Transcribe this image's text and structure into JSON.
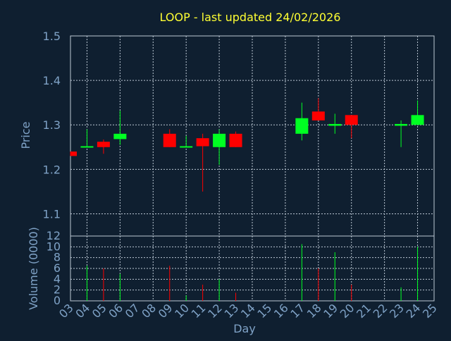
{
  "title": "LOOP - last updated 24/02/2026",
  "colors": {
    "background": "#0f1f30",
    "title": "#ffff33",
    "axis_text": "#7fa2c6",
    "grid": "#bcc8d4",
    "up": "#00ff22",
    "down": "#ff0000"
  },
  "chart_data": [
    {
      "type": "candlestick",
      "ylabel": "Price",
      "ylim": [
        1.05,
        1.5
      ],
      "yticks": [
        "1.1",
        "1.2",
        "1.3",
        "1.4",
        "1.5"
      ],
      "grid": true,
      "candles": [
        {
          "day": "03",
          "open": 1.24,
          "high": 1.24,
          "low": 1.23,
          "close": 1.23
        },
        {
          "day": "04",
          "open": 1.25,
          "high": 1.29,
          "low": 1.25,
          "close": 1.252
        },
        {
          "day": "05",
          "open": 1.262,
          "high": 1.267,
          "low": 1.235,
          "close": 1.25
        },
        {
          "day": "06",
          "open": 1.268,
          "high": 1.332,
          "low": 1.255,
          "close": 1.28
        },
        {
          "day": "09",
          "open": 1.28,
          "high": 1.29,
          "low": 1.25,
          "close": 1.25
        },
        {
          "day": "10",
          "open": 1.25,
          "high": 1.275,
          "low": 1.25,
          "close": 1.252
        },
        {
          "day": "11",
          "open": 1.27,
          "high": 1.28,
          "low": 1.15,
          "close": 1.252
        },
        {
          "day": "12",
          "open": 1.25,
          "high": 1.29,
          "low": 1.21,
          "close": 1.28
        },
        {
          "day": "13",
          "open": 1.28,
          "high": 1.285,
          "low": 1.25,
          "close": 1.25
        },
        {
          "day": "17",
          "open": 1.28,
          "high": 1.35,
          "low": 1.265,
          "close": 1.315
        },
        {
          "day": "18",
          "open": 1.33,
          "high": 1.36,
          "low": 1.31,
          "close": 1.31
        },
        {
          "day": "19",
          "open": 1.298,
          "high": 1.325,
          "low": 1.28,
          "close": 1.302
        },
        {
          "day": "20",
          "open": 1.322,
          "high": 1.322,
          "low": 1.27,
          "close": 1.3
        },
        {
          "day": "23",
          "open": 1.298,
          "high": 1.31,
          "low": 1.25,
          "close": 1.302
        },
        {
          "day": "24",
          "open": 1.3,
          "high": 1.355,
          "low": 1.3,
          "close": 1.322
        }
      ]
    },
    {
      "type": "bar",
      "xlabel": "Day",
      "ylabel": "Volume (0000)",
      "ylim": [
        0,
        12
      ],
      "yticks": [
        "0",
        "2",
        "4",
        "6",
        "8",
        "10",
        "12"
      ],
      "grid": true,
      "x_categories": [
        "03",
        "04",
        "05",
        "06",
        "07",
        "08",
        "09",
        "10",
        "11",
        "12",
        "13",
        "14",
        "15",
        "16",
        "17",
        "18",
        "19",
        "20",
        "21",
        "22",
        "23",
        "24",
        "25"
      ],
      "volumes": [
        {
          "day": "04",
          "value": 6.5,
          "color": "up"
        },
        {
          "day": "05",
          "value": 6.0,
          "color": "down"
        },
        {
          "day": "06",
          "value": 5.0,
          "color": "up"
        },
        {
          "day": "09",
          "value": 6.5,
          "color": "down"
        },
        {
          "day": "10",
          "value": 1.0,
          "color": "up"
        },
        {
          "day": "11",
          "value": 3.0,
          "color": "down"
        },
        {
          "day": "12",
          "value": 4.0,
          "color": "up"
        },
        {
          "day": "13",
          "value": 1.5,
          "color": "down"
        },
        {
          "day": "17",
          "value": 10.5,
          "color": "up"
        },
        {
          "day": "18",
          "value": 6.0,
          "color": "down"
        },
        {
          "day": "19",
          "value": 9.0,
          "color": "up"
        },
        {
          "day": "20",
          "value": 3.0,
          "color": "down"
        },
        {
          "day": "23",
          "value": 2.5,
          "color": "up"
        },
        {
          "day": "24",
          "value": 10.0,
          "color": "up"
        }
      ]
    }
  ]
}
